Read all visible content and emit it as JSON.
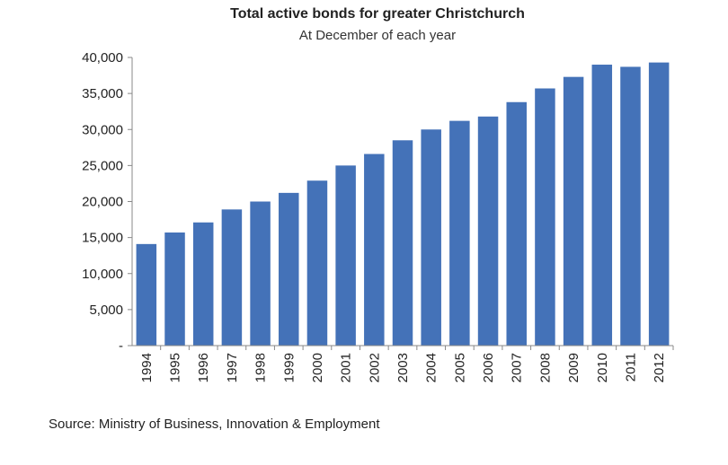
{
  "chart_data": {
    "type": "bar",
    "title": "Total active bonds for greater Christchurch",
    "subtitle": "At December of each year",
    "xlabel": "",
    "ylabel": "",
    "categories": [
      "1994",
      "1995",
      "1996",
      "1997",
      "1998",
      "1999",
      "2000",
      "2001",
      "2002",
      "2003",
      "2004",
      "2005",
      "2006",
      "2007",
      "2008",
      "2009",
      "2010",
      "2011",
      "2012"
    ],
    "values": [
      14100,
      15700,
      17100,
      18900,
      20000,
      21200,
      22900,
      25000,
      26600,
      28500,
      30000,
      31200,
      31800,
      33800,
      35700,
      37300,
      39000,
      38700,
      39300
    ],
    "ylim": [
      0,
      40000
    ],
    "yticks": [
      0,
      5000,
      10000,
      15000,
      20000,
      25000,
      30000,
      35000,
      40000
    ],
    "ytick_labels": [
      "-",
      "5,000",
      "10,000",
      "15,000",
      "20,000",
      "25,000",
      "30,000",
      "35,000",
      "40,000"
    ],
    "bar_color": "#4472b8",
    "grid": false,
    "legend": "none"
  },
  "source_text": "Source: Ministry of Business, Innovation & Employment"
}
